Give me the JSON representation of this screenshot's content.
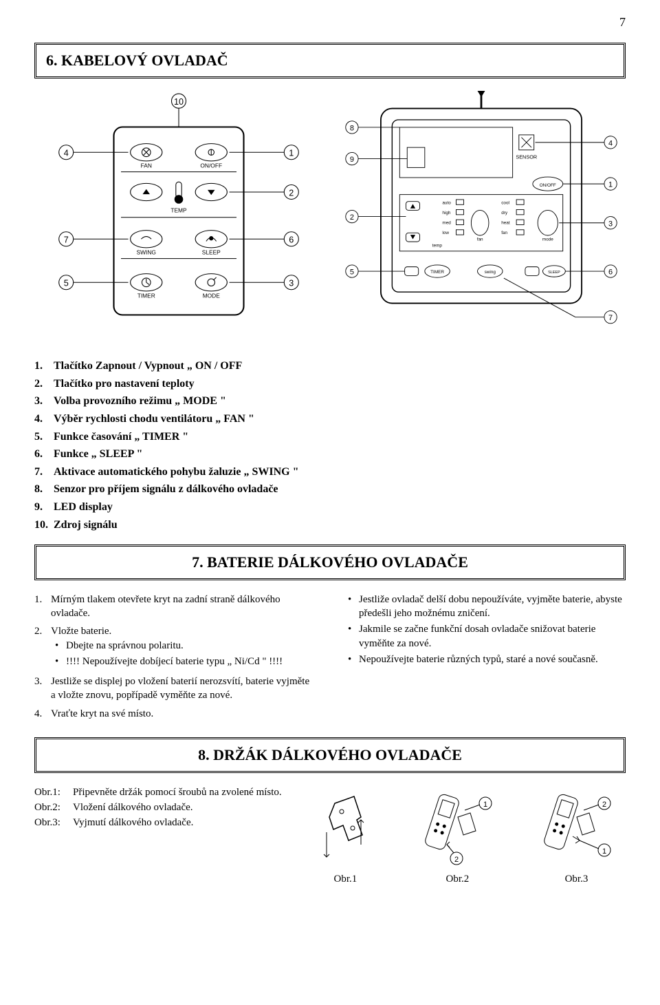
{
  "page_number": "7",
  "section6": {
    "title": "6. KABELOVÝ OVLADAČ",
    "items": [
      {
        "n": "1.",
        "text": "Tlačítko  Zapnout / Vypnout  „ ON / OFF"
      },
      {
        "n": "2.",
        "text": "Tlačítko pro nastavení teploty"
      },
      {
        "n": "3.",
        "text": "Volba provozního režimu  „ MODE \""
      },
      {
        "n": "4.",
        "text": "Výběr rychlosti chodu ventilátoru „ FAN \""
      },
      {
        "n": "5.",
        "text": "Funkce časování „ TIMER \""
      },
      {
        "n": "6.",
        "text": "Funkce „ SLEEP \""
      },
      {
        "n": "7.",
        "text": "Aktivace automatického pohybu žaluzie „ SWING \""
      },
      {
        "n": "8.",
        "text": "Senzor pro  příjem signálu z dálkového ovladače"
      },
      {
        "n": "9.",
        "text": "LED display"
      },
      {
        "n": "10.",
        "text": "Zdroj signálu"
      }
    ]
  },
  "diagram_left": {
    "labels": [
      "FAN",
      "ON/OFF",
      "TEMP",
      "SWING",
      "SLEEP",
      "TIMER",
      "MODE"
    ],
    "callouts": [
      "1",
      "2",
      "3",
      "4",
      "5",
      "6",
      "7",
      "10"
    ]
  },
  "diagram_right": {
    "labels": [
      "SENSOR",
      "ON/OFF",
      "auto",
      "high",
      "med",
      "low",
      "temp",
      "fan",
      "cool",
      "dry",
      "heat",
      "fan",
      "mode",
      "TIMER",
      "swing",
      "SLEEP"
    ],
    "callouts": [
      "1",
      "2",
      "3",
      "4",
      "5",
      "6",
      "7",
      "8",
      "9"
    ]
  },
  "section7": {
    "title": "7. BATERIE DÁLKOVÉHO OVLADAČE",
    "left": [
      {
        "n": "1.",
        "text": "Mírným tlakem otevřete kryt na zadní straně dálkového ovladače."
      },
      {
        "n": "2.",
        "text": "Vložte baterie.",
        "bullets": [
          "Dbejte na správnou polaritu.",
          "!!!! Nepoužívejte dobíjecí baterie typu  „ Ni/Cd \" !!!!"
        ]
      },
      {
        "n": "3.",
        "text": "Jestliže se displej po vložení baterií nerozsvítí, baterie vyjměte a vložte znovu, popřípadě vyměňte za nové."
      },
      {
        "n": "4.",
        "text": "Vraťte kryt na své místo."
      }
    ],
    "right_bullets": [
      "Jestliže ovladač delší dobu nepoužíváte, vyjměte baterie, abyste předešli jeho možnému zničení.",
      "Jakmile se začne funkční dosah ovladače  snižovat baterie vyměňte za nové.",
      "Nepoužívejte baterie různých typů, staré a nové současně."
    ]
  },
  "section8": {
    "title": "8. DRŽÁK DÁLKOVÉHO OVLADAČE",
    "obr_list": [
      {
        "lbl": "Obr.1:",
        "text": "Připevněte držák pomocí šroubů na zvolené místo."
      },
      {
        "lbl": "Obr.2:",
        "text": "Vložení dálkového ovladače."
      },
      {
        "lbl": "Obr.3:",
        "text": "Vyjmutí dálkového ovladače."
      }
    ],
    "captions": [
      "Obr.1",
      "Obr.2",
      "Obr.3"
    ]
  }
}
